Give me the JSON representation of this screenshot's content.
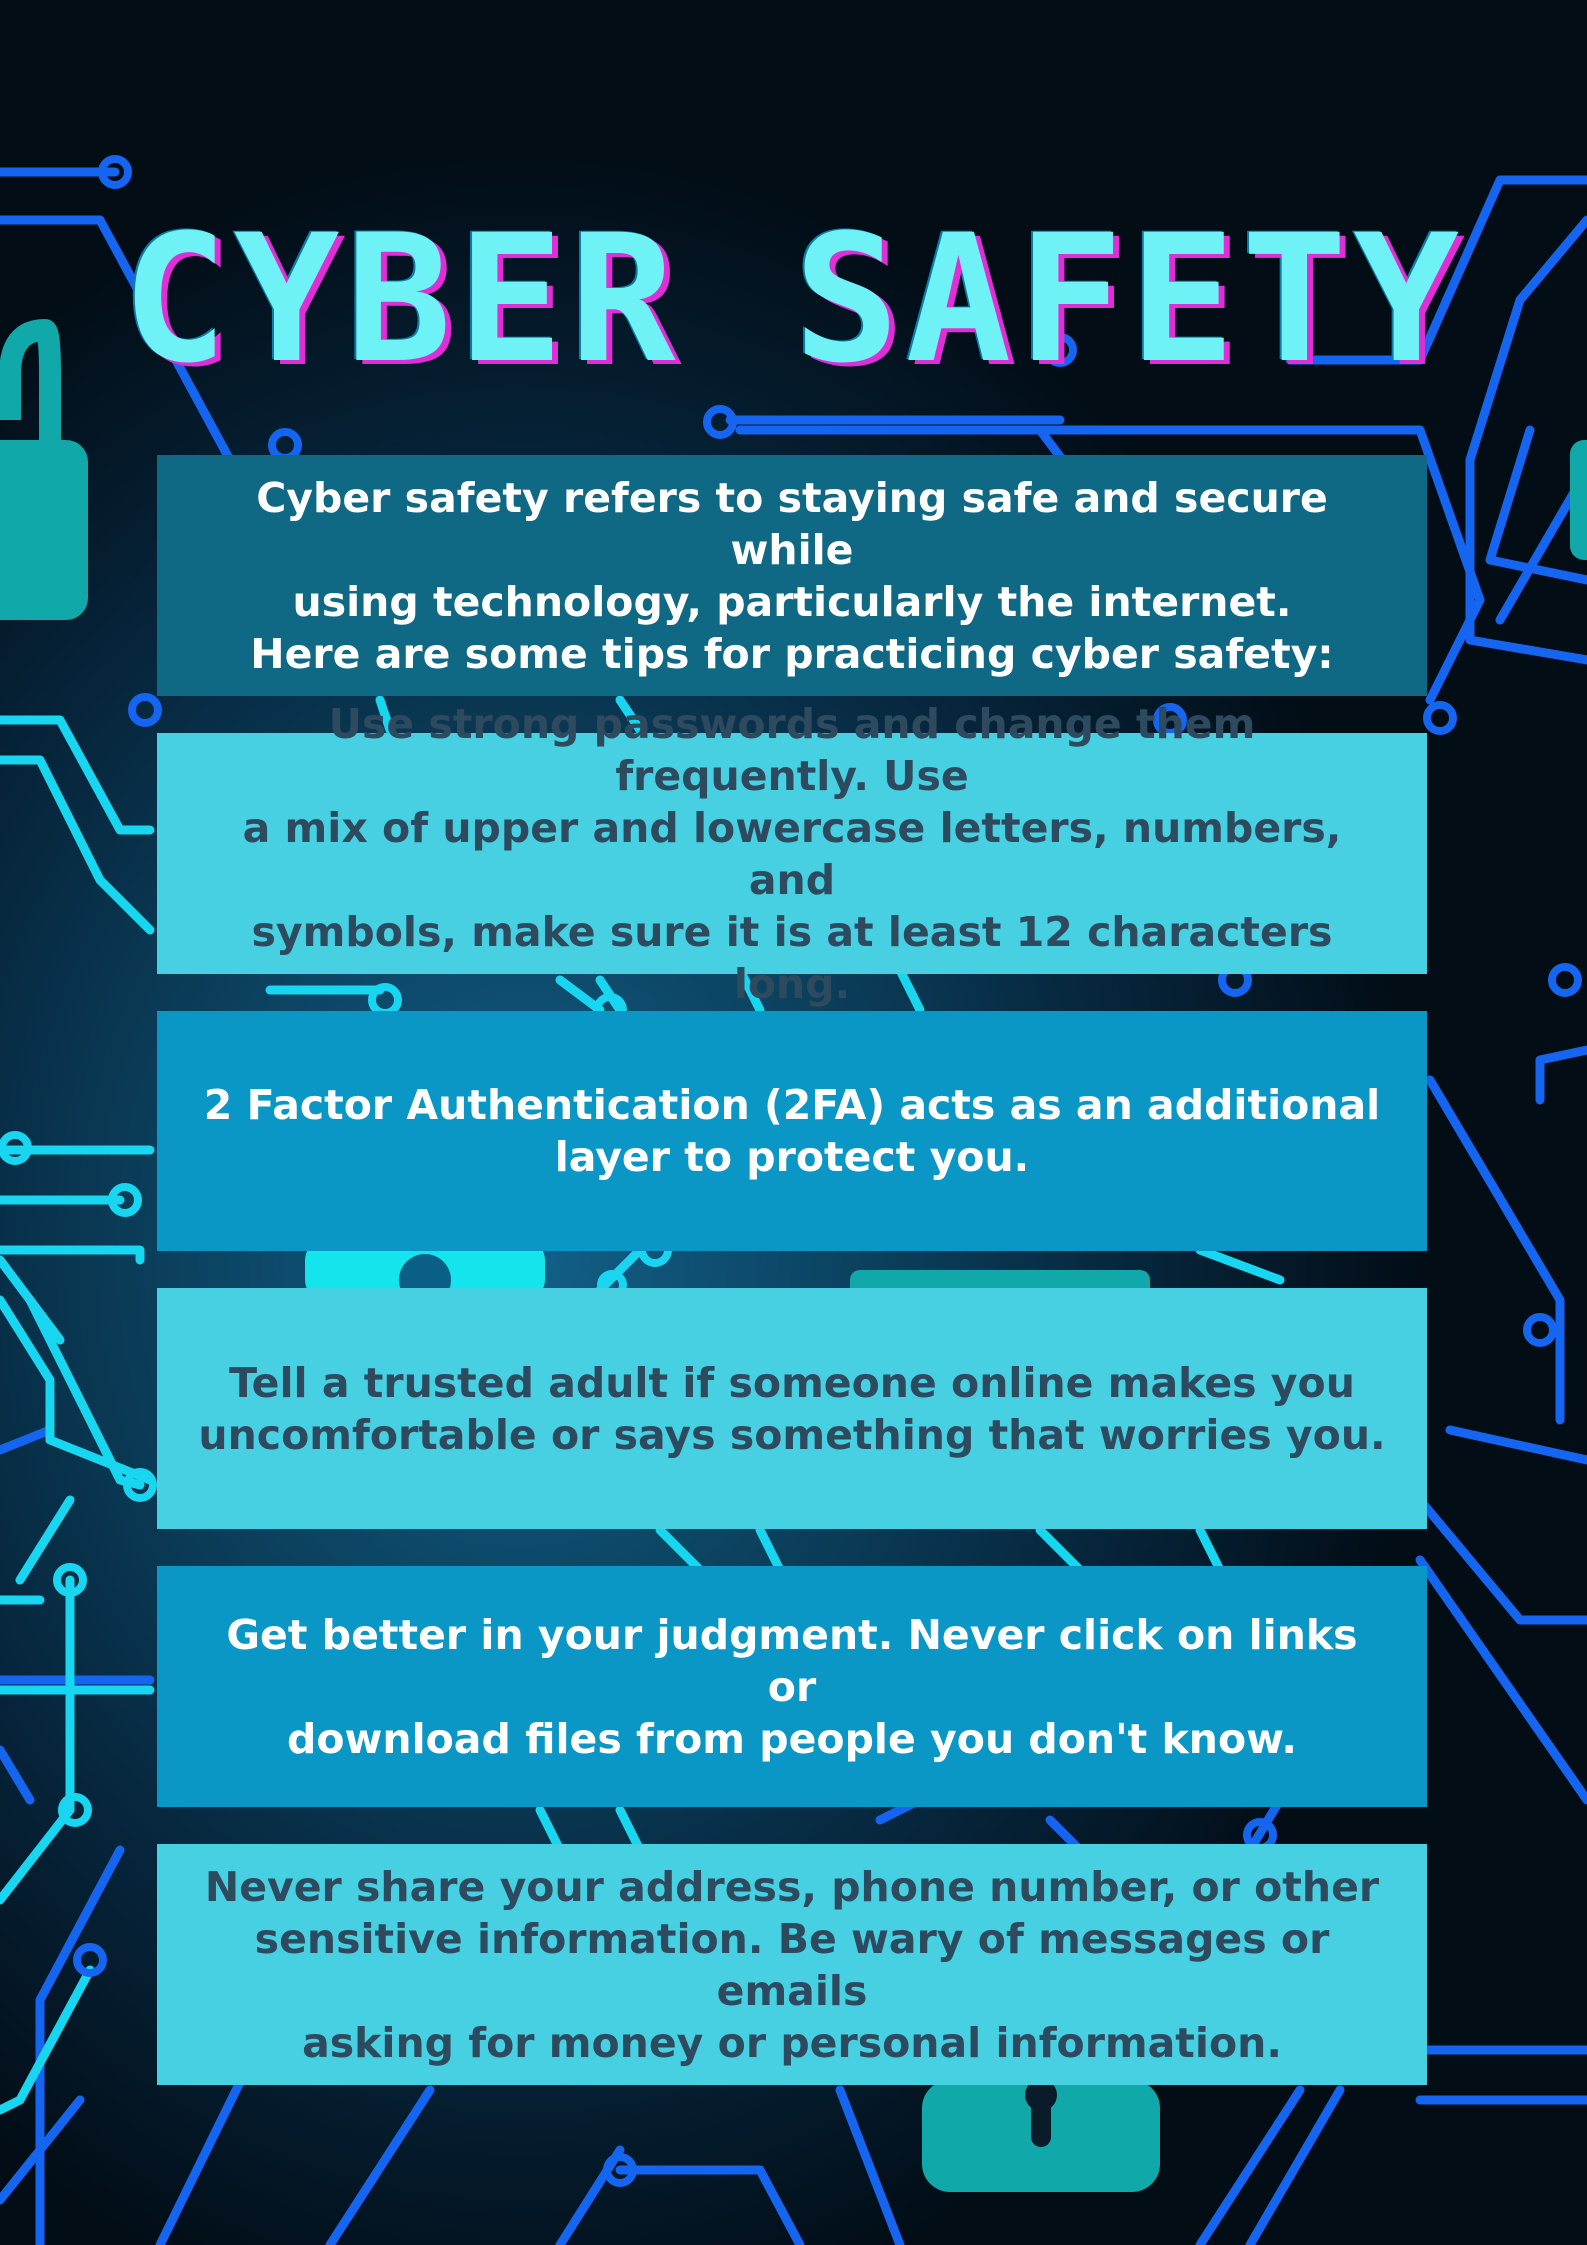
{
  "poster": {
    "title": "CYBER SAFETY",
    "intro": "Cyber safety refers to staying safe and secure while\nusing technology, particularly the internet.\nHere are some tips for practicing cyber safety:",
    "tips": [
      "Use strong passwords and change them frequently. Use\na mix of upper and lowercase letters, numbers, and\nsymbols, make sure it is at least 12 characters long.",
      "2 Factor Authentication (2FA) acts as an additional\nlayer to protect you.",
      "Tell a trusted adult if someone online makes you\nuncomfortable or says something that worries you.",
      "Get better in your judgment. Never click on links or\ndownload files from people you don't know.",
      "Never share your address, phone number, or other\nsensitive information. Be wary of messages or emails\nasking for money or personal information."
    ]
  },
  "colors": {
    "title": "#6ff2f6",
    "title_shadow": "#e02ed6",
    "intro_box": "#0f6985",
    "light_box": "#47d0e2",
    "mid_box": "#0b97c6",
    "dark_text": "#2e4a5e",
    "circuit_blue": "#1565f0",
    "circuit_cyan": "#19d6f0",
    "padlock_teal": "#10a8a8"
  },
  "icons": [
    "padlock-icon",
    "padlock-icon",
    "padlock-icon",
    "keyhole-padlock-icon"
  ]
}
